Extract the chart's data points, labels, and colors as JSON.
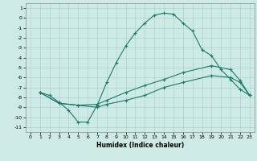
{
  "xlabel": "Humidex (Indice chaleur)",
  "ylabel": "",
  "bg_color": "#cdeae4",
  "grid_color": "#b0d4ce",
  "line_color": "#1a7a6e",
  "xlim": [
    -0.5,
    23.5
  ],
  "ylim": [
    -11.5,
    1.5
  ],
  "xticks": [
    0,
    1,
    2,
    3,
    4,
    5,
    6,
    7,
    8,
    9,
    10,
    11,
    12,
    13,
    14,
    15,
    16,
    17,
    18,
    19,
    20,
    21,
    22,
    23
  ],
  "yticks": [
    1,
    0,
    -1,
    -2,
    -3,
    -4,
    -5,
    -6,
    -7,
    -8,
    -9,
    -10,
    -11
  ],
  "line1_x": [
    1,
    2,
    3,
    4,
    5,
    6,
    7,
    8,
    9,
    10,
    11,
    12,
    13,
    14,
    15,
    16,
    17,
    18,
    19,
    20,
    21,
    22,
    23
  ],
  "line1_y": [
    -7.5,
    -7.8,
    -8.5,
    -9.3,
    -10.5,
    -10.5,
    -8.8,
    -6.5,
    -4.5,
    -2.8,
    -1.5,
    -0.5,
    0.3,
    0.5,
    0.4,
    -0.5,
    -1.3,
    -3.2,
    -3.8,
    -5.2,
    -6.2,
    -7.2,
    -7.8
  ],
  "line2_x": [
    1,
    3,
    5,
    7,
    8,
    10,
    12,
    14,
    16,
    19,
    21,
    22,
    23
  ],
  "line2_y": [
    -7.5,
    -8.6,
    -8.8,
    -8.7,
    -8.3,
    -7.5,
    -6.8,
    -6.2,
    -5.5,
    -4.8,
    -5.2,
    -6.3,
    -7.8
  ],
  "line3_x": [
    1,
    3,
    5,
    7,
    8,
    10,
    12,
    14,
    16,
    19,
    21,
    22,
    23
  ],
  "line3_y": [
    -7.5,
    -8.6,
    -8.8,
    -9.0,
    -8.7,
    -8.3,
    -7.8,
    -7.0,
    -6.5,
    -5.8,
    -6.0,
    -6.5,
    -7.8
  ]
}
